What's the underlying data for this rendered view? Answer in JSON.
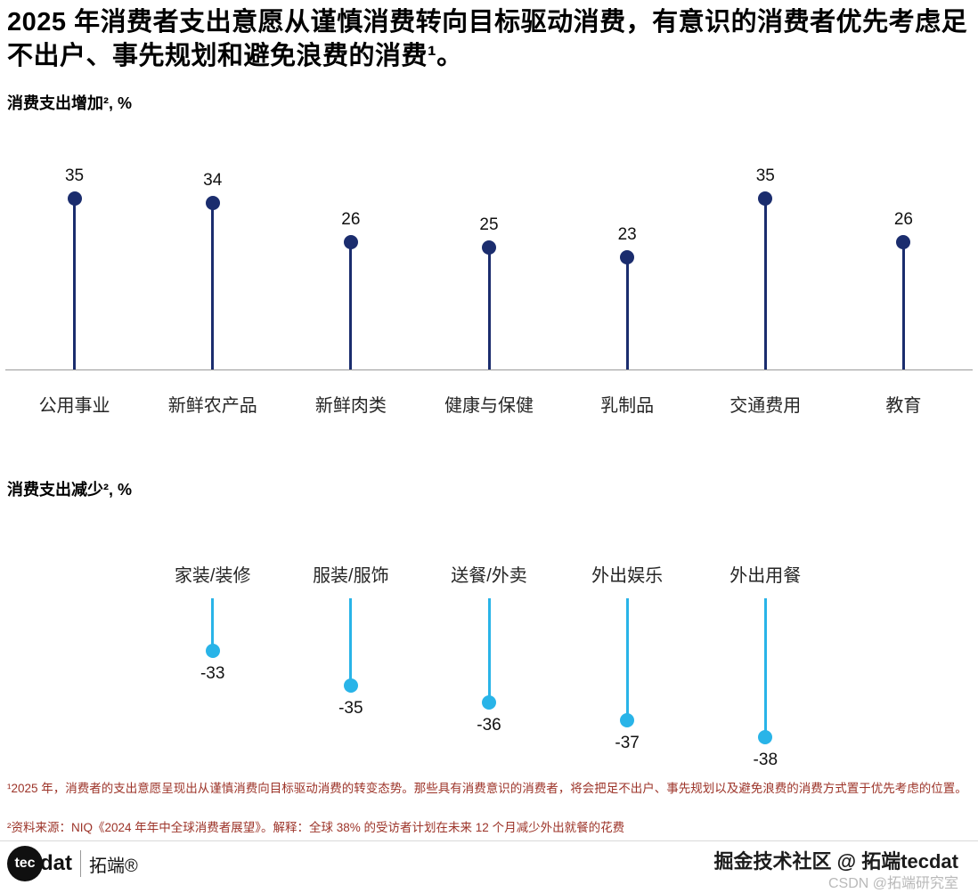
{
  "title": "2025 年消费者支出意愿从谨慎消费转向目标驱动消费，有意识的消费者优先考虑足不出户、事先规划和避免浪费的消费¹。",
  "chart_data": [
    {
      "type": "bar",
      "subtype": "lollipop",
      "title": "消费支出增加², %",
      "categories": [
        "公用事业",
        "新鲜农产品",
        "新鲜肉类",
        "健康与保健",
        "乳制品",
        "交通费用",
        "教育"
      ],
      "values": [
        35,
        34,
        26,
        25,
        23,
        35,
        26
      ],
      "direction": "up",
      "unit": "%",
      "color": "#1b2d6e",
      "grid": false,
      "legend": "none"
    },
    {
      "type": "bar",
      "subtype": "lollipop",
      "title": "消费支出减少², %",
      "categories": [
        "家装/装修",
        "服装/服饰",
        "送餐/外卖",
        "外出娱乐",
        "外出用餐"
      ],
      "values": [
        -33,
        -35,
        -36,
        -37,
        -38
      ],
      "direction": "down",
      "unit": "%",
      "color": "#29b4e8",
      "grid": false,
      "legend": "none"
    }
  ],
  "footnotes": [
    "¹2025 年，消费者的支出意愿呈现出从谨慎消费向目标驱动消费的转变态势。那些具有消费意识的消费者，将会把足不出户、事先规划以及避免浪费的消费方式置于优先考虑的位置。",
    "²资料来源：NIQ《2024 年年中全球消费者展望》。解释：全球 38% 的受访者计划在未来 12 个月减少外出就餐的花费"
  ],
  "footer": {
    "logo_tec": "tec",
    "logo_dat": "dat",
    "logo_brand": "拓端®"
  },
  "watermarks": {
    "primary": "掘金技术社区 @ 拓端tecdat",
    "secondary": "CSDN @拓端研究室"
  },
  "colors": {
    "increase_series": "#1b2d6e",
    "decrease_series": "#29b4e8",
    "footnote_text": "#9c3328",
    "axis_line": "#9a9a9a"
  }
}
